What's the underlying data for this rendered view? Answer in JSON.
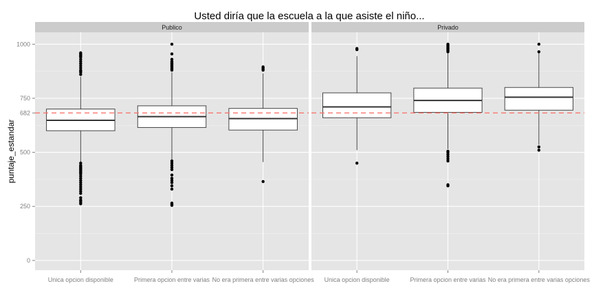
{
  "chart_data": {
    "type": "boxplot",
    "title": "Usted diría que la escuela a la que asiste el niño...",
    "ylabel": "puntaje_estandar",
    "xlabel": "",
    "ylim": [
      -45,
      1055
    ],
    "yticks": [
      0,
      250,
      500,
      750,
      1000
    ],
    "extra_ytick": 682,
    "reference_line": {
      "value": 682,
      "color": "#f8766d",
      "style": "dashed"
    },
    "grid": true,
    "colors": {
      "panel": "#e5e5e5",
      "strip": "#cccccc",
      "grid_major": "#ffffff",
      "box_fill": "#ffffff",
      "box_line": "#333333",
      "refline": "#f8766d"
    },
    "categories": [
      "Unica opcion disponible",
      "Primera opcion entre varias",
      "No era primera entre varias opciones"
    ],
    "panels": [
      {
        "name": "Publico",
        "boxes": [
          {
            "category": "Unica opcion disponible",
            "q1": 600,
            "median": 648,
            "q3": 700,
            "whisker_low": 455,
            "whisker_high": 850,
            "outliers": [
              262,
              268,
              275,
              280,
              290,
              310,
              320,
              330,
              340,
              350,
              360,
              370,
              380,
              390,
              400,
              405,
              410,
              415,
              420,
              425,
              430,
              435,
              440,
              450,
              860,
              870,
              875,
              880,
              890,
              900,
              910,
              920,
              930,
              940,
              945,
              950,
              955,
              960
            ]
          },
          {
            "category": "Primera opcion entre varias",
            "q1": 615,
            "median": 665,
            "q3": 715,
            "whisker_low": 460,
            "whisker_high": 870,
            "outliers": [
              255,
              260,
              265,
              330,
              345,
              360,
              370,
              380,
              395,
              420,
              430,
              440,
              450,
              460,
              880,
              885,
              890,
              895,
              900,
              905,
              910,
              915,
              920,
              930,
              955,
              1000
            ]
          },
          {
            "category": "No era primera entre varias opciones",
            "q1": 603,
            "median": 656,
            "q3": 703,
            "whisker_low": 455,
            "whisker_high": 865,
            "outliers": [
              365,
              880,
              885,
              890,
              895
            ]
          }
        ]
      },
      {
        "name": "Privado",
        "boxes": [
          {
            "category": "Unica opcion disponible",
            "q1": 660,
            "median": 710,
            "q3": 775,
            "whisker_low": 510,
            "whisker_high": 945,
            "outliers": [
              450,
              975,
              980
            ]
          },
          {
            "category": "Primera opcion entre varias",
            "q1": 685,
            "median": 740,
            "q3": 797,
            "whisker_low": 515,
            "whisker_high": 960,
            "outliers": [
              345,
              350,
              460,
              470,
              480,
              490,
              500,
              505,
              965,
              970,
              975,
              980,
              985,
              990,
              995,
              1000
            ]
          },
          {
            "category": "No era primera entre varias opciones",
            "q1": 695,
            "median": 755,
            "q3": 800,
            "whisker_low": 535,
            "whisker_high": 960,
            "outliers": [
              510,
              525,
              965,
              1000
            ]
          }
        ]
      }
    ]
  }
}
